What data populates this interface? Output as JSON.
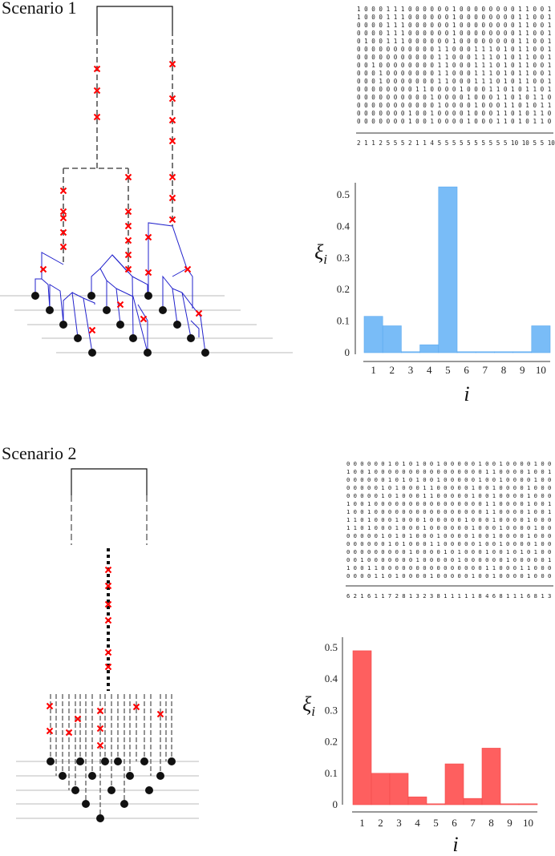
{
  "scenarios": [
    {
      "title": "Scenario 1",
      "matrix_rows": [
        "1 0 0 0 1 1 1 0 0 0 0 0 0 1 0 0 0 0 0 0 0 0   1   1 0 0 1 0",
        "1 0 0 0 1 1 1 0 0 0 0 0 0 1 0 0 0 0 0 0 0 0   1   1 0 0 1 0",
        "0 0 0 0 1 1 1 0 0 0 0 0 0 1 0 0 0 0 0 0 0 0   1   1 0 0 1 0",
        "0 0 0 0 1 1 1 0 0 0 0 0 0 1 0 0 0 0 0 0 0 0   1   1 0 0 1 0",
        "0 1 0 0 1 1 1 0 0 0 0 0 0 1 0 0 0 0 0 0 0 0   1   1 0 0 1 0",
        "0 0 0 0 0 0 0 0 0 0 0 1 1 0 0 0 1 1 1 0 1 0   1   1 0 0 1 0",
        "0 0 0 0 0 0 0 0 0 0 0 1 1 0 0 0 1 1 1 0 1 0   1   1 0 0 1 0",
        "0 0 1 0 0 0 0 0 0 0 0 1 1 0 0 0 1 1 1 0 1 0   1   1 0 0 1 0",
        "0 0 0 1 0 0 0 0 0 0 0 1 1 0 0 0 1 1 1 0 1 0   1   1 0 0 1 0",
        "0 0 0 1 0 0 0 0 0 0 0 1 1 0 0 0 1 1 1 0 1 0   1   1 0 0 1 0",
        "0 0 0 0 0 0 0 0 1 1 0 0 0 0 1 0 0 0 1 1 0 1   0   1 1 0 1",
        "0 0 0 0 0 0 0 0 0 0 1 0 0 0 0 1 0 0 0 1 1 0 1   0   1 1 0 1",
        "0 0 0 0 0 0 0 0 0 0 0 1 0 0 0 0 1 0 0 0 1 1 0 1   0   1 1 0 1",
        "0 0 0 0 0 0 0 1 0 0 1 0 0 0 0 1 0 0 0 1 1 0 1   0   1 1 0 1",
        "0 0 0 0 0 0 0 1 0 0 1 0 0 0 0 1 0 0 0 1 1 0 1   0   1 1 0 1"
      ],
      "matrix_sums": "2 1 1 2 5 5 5 2 1 1 4 5 5 5 5 5 5 5 5 5 5 10 10 5 5 10 5",
      "bar_color": "#79bcf7",
      "bar_edge": "#5aa9ef"
    },
    {
      "title": "Scenario 2",
      "matrix_rows": [
        "0 0 0 0 0 0 1 0 1 0 1 0 0 1 0 0 0 0 0 1 0 0 1 0 0 0 0 1 0 0 0 0 0 0",
        "1 0 0 1 0 0 0 0 0 0 0 0 0 0 0 0 0 0 0 0 1 1 0 0 0 0 1 0 0 1 0 0 0",
        "0 0 0 0 0 0 1 0 1 0 1 0 0 1 0 0 0 0 0 1 0 0 1 0 0 0 0 1 0 0 0 0 0 0",
        "0 0 0 0 0 1 0 1 0 0 0 1 1 0 0 0 0 0 1 0 0 1 0 0 0 0 1 0 0 0 0 0 0",
        "0 0 0 0 0 1 0 1 0 0 0 1 1 0 0 0 0 0 1 0 0 1 0 0 0 0 1 0 0 0 0 0 0",
        "1 0 0 1 0 0 0 0 0 0 0 0 0 0 0 0 0 0 0 0 1 1 0 0 0 0 1 0 0 1 0 0 0",
        "1 0 0 1 0 0 0 0 0 0 0 0 0 0 0 0 0 0 0 0 1 1 0 0 0 0 1 0 0 1 0 0 0",
        "1 1 0 1 0 0 0 1 0 0 0 1 0 0 0 0 0 1 0 0 0 1 0 0 0 0 1 0 0 0 0 1 0",
        "1 1 0 1 0 0 0 1 0 0 0 1 0 0 0 0 0 0 1 0 0 0 1 0 0 0 0 1 0 0 0 0 0 0",
        "0 0 0 0 0 1 0 1 0 1 0 0 0 1 0 0 0 0 1 0 0 1 0 0 0 0 1 0 0 0 0 0 0",
        "0 0 0 0 0 0 1 0 1 0 0 0 1 1 0 0 0 0 0 1 0 0 1 0 0 0 0 1 0 0 0 0 0 0",
        "0 0 0 0 0 0 0 0 0 1 0 0 0 0 1 0 1 0 0 0 1 0 0 1 0 1 0 1 0 0 0 0 0",
        "0 0 1 0 0 0 0 0 0 0 1 0 0 0 0 0 1 0 0 0 0 0 0 1 0 0 0 0 0 1 0 1 0",
        "1 0 0 1 1 0 0 0 0 0 0 0 0 0 0 0 0 0 0 0 1 1 0 0 0 1 1 0 0 0 0 0 0",
        "0 0 0 0 1 1 0 1 0 0 0 0 1 0 0 0 0 0 1 0 0 1 0 0 0 0 1 0 0 0 0 0 0"
      ],
      "matrix_sums": "6 2 1 6 1 1 7 2 8 1 3 2 3 8 1 1 1 1 1 8 4 6 8 1 1 1 6 8 1 3 1 1 1",
      "bar_color": "#fe5f5f",
      "bar_edge": "#f24a4a"
    }
  ],
  "chart_data": [
    {
      "type": "bar",
      "categories": [
        "1",
        "2",
        "3",
        "4",
        "5",
        "6",
        "7",
        "8",
        "9",
        "10"
      ],
      "values": [
        0.115,
        0.085,
        0.003,
        0.025,
        0.525,
        0.003,
        0.003,
        0.003,
        0.003,
        0.085
      ],
      "title": "",
      "xlabel": "i",
      "ylabel": "ξ_i",
      "ylim": [
        0,
        0.55
      ],
      "yticks": [
        "0",
        "0.1",
        "0.2",
        "0.3",
        "0.4",
        "0.5"
      ],
      "ytick_values": [
        0,
        0.1,
        0.2,
        0.3,
        0.4,
        0.5
      ],
      "grid": false
    },
    {
      "type": "bar",
      "categories": [
        "1",
        "2",
        "3",
        "4",
        "5",
        "6",
        "7",
        "8",
        "9",
        "10"
      ],
      "values": [
        0.49,
        0.1,
        0.1,
        0.025,
        0.003,
        0.13,
        0.02,
        0.18,
        0.003,
        0.003
      ],
      "title": "",
      "xlabel": "i",
      "ylabel": "ξ_i",
      "ylim": [
        0,
        0.52
      ],
      "yticks": [
        "0",
        "0.1",
        "0.2",
        "0.3",
        "0.4",
        "0.5"
      ],
      "ytick_values": [
        0,
        0.1,
        0.2,
        0.3,
        0.4,
        0.5
      ],
      "grid": false
    }
  ]
}
